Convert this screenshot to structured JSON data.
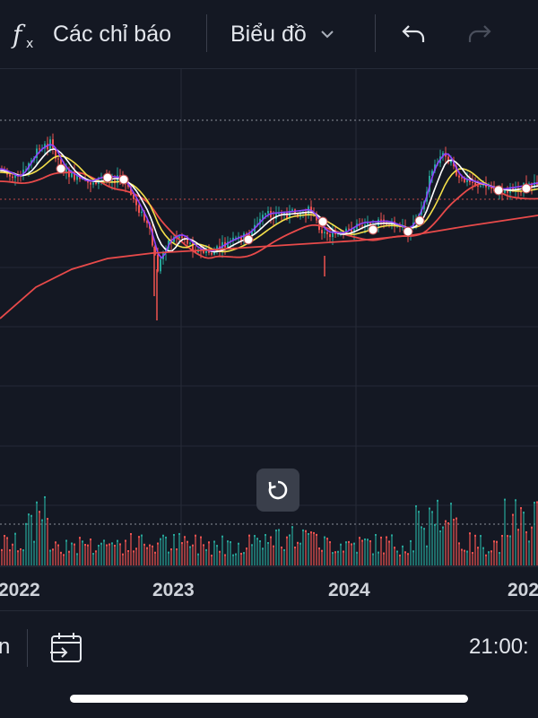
{
  "toolbar": {
    "indicators_label": "Các chỉ báo",
    "chart_label": "Biểu đồ"
  },
  "xaxis": {
    "years": [
      "2022",
      "2023",
      "2024",
      "202"
    ]
  },
  "bottombar": {
    "left_fragment": "n",
    "time": "21:00:"
  },
  "icons": [
    "function-icon",
    "chevron-down-icon",
    "undo-icon",
    "redo-icon",
    "reset-icon",
    "calendar-goto-icon"
  ],
  "colors": {
    "background": "#141823",
    "up": "#26a69a",
    "down": "#ef5350",
    "ma_white": "#ffffff",
    "ma_yellow": "#f5e04a",
    "ma_purple": "#8e44ff",
    "ma_red": "#e84a4a"
  }
}
